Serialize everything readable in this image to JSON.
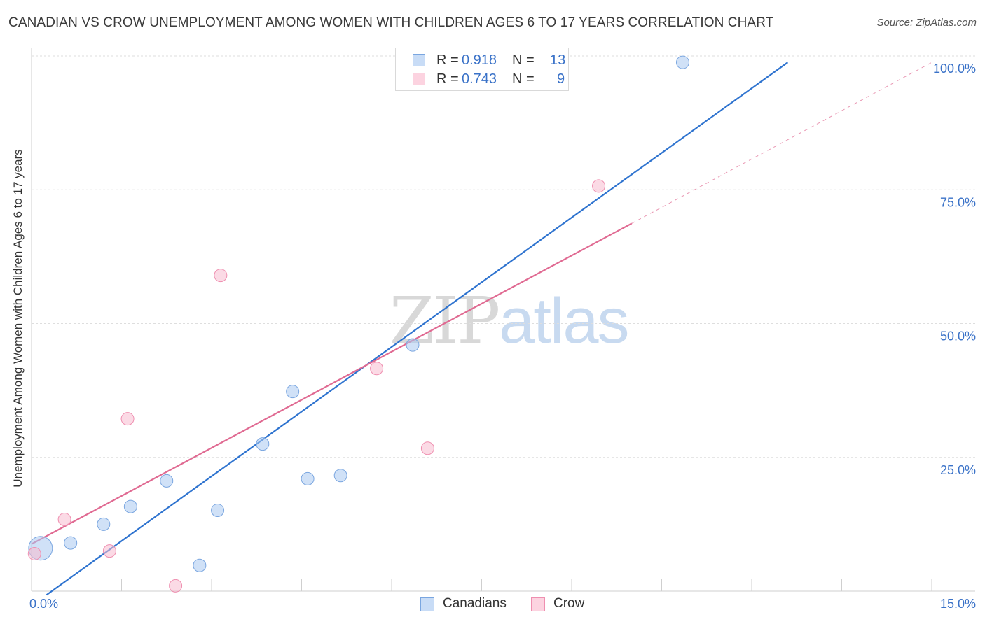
{
  "header": {
    "title": "CANADIAN VS CROW UNEMPLOYMENT AMONG WOMEN WITH CHILDREN AGES 6 TO 17 YEARS CORRELATION CHART",
    "source": "Source: ZipAtlas.com"
  },
  "watermark": {
    "zip": "ZIP",
    "atlas": "atlas"
  },
  "legend": {
    "rows": [
      {
        "r_label": "R =",
        "r_value": "0.918",
        "n_label": "N =",
        "n_value": "13",
        "color": "#a9c8f0",
        "border": "#7aa6e0"
      },
      {
        "r_label": "R =",
        "r_value": "0.743",
        "n_label": "N =",
        "n_value": "9",
        "color": "#f8bcd0",
        "border": "#ef8fb0"
      }
    ]
  },
  "bottom_legend": {
    "canadians": "Canadians",
    "crow": "Crow"
  },
  "chart_data": {
    "type": "scatter",
    "title": "CANADIAN VS CROW UNEMPLOYMENT AMONG WOMEN WITH CHILDREN AGES 6 TO 17 YEARS CORRELATION CHART",
    "xlabel": "",
    "ylabel": "Unemployment Among Women with Children Ages 6 to 17 years",
    "xlim": [
      0,
      15
    ],
    "ylim": [
      0,
      100
    ],
    "x_tick_labels": [
      "0.0%",
      "15.0%"
    ],
    "y_tick_labels": [
      "100.0%",
      "75.0%",
      "50.0%",
      "25.0%"
    ],
    "y_ticks": [
      100,
      75,
      50,
      25
    ],
    "grid": true,
    "series": [
      {
        "name": "Canadians",
        "color": "#a9c8f0",
        "stroke": "#7aa6e0",
        "line_color": "#2e73cf",
        "r": 0.918,
        "n": 13,
        "points": [
          {
            "x": 0.15,
            "y": 8.0,
            "big": true
          },
          {
            "x": 0.65,
            "y": 9.0
          },
          {
            "x": 1.2,
            "y": 12.5
          },
          {
            "x": 1.65,
            "y": 15.8
          },
          {
            "x": 2.25,
            "y": 20.6
          },
          {
            "x": 2.8,
            "y": 4.8
          },
          {
            "x": 3.1,
            "y": 15.1
          },
          {
            "x": 3.85,
            "y": 27.5
          },
          {
            "x": 4.35,
            "y": 37.3
          },
          {
            "x": 4.6,
            "y": 21.0
          },
          {
            "x": 5.15,
            "y": 21.6
          },
          {
            "x": 6.35,
            "y": 46.0
          },
          {
            "x": 10.85,
            "y": 98.8
          }
        ],
        "trend": {
          "x1": 0.25,
          "y1": -0.7,
          "x2": 12.6,
          "y2": 98.8,
          "dashed_to": null
        }
      },
      {
        "name": "Crow",
        "color": "#f8bcd0",
        "stroke": "#ef8fb0",
        "line_color": "#e06a92",
        "r": 0.743,
        "n": 9,
        "points": [
          {
            "x": 0.05,
            "y": 7.0
          },
          {
            "x": 0.55,
            "y": 13.4
          },
          {
            "x": 1.3,
            "y": 7.5
          },
          {
            "x": 1.6,
            "y": 32.2
          },
          {
            "x": 2.4,
            "y": 1.0
          },
          {
            "x": 3.15,
            "y": 59.0
          },
          {
            "x": 5.75,
            "y": 41.6
          },
          {
            "x": 6.6,
            "y": 26.7
          },
          {
            "x": 9.45,
            "y": 75.7
          }
        ],
        "trend": {
          "x1": 0.0,
          "y1": 8.8,
          "x2": 10.0,
          "y2": 68.7,
          "dashed_to": {
            "x": 15.0,
            "y": 98.8
          }
        }
      }
    ]
  }
}
